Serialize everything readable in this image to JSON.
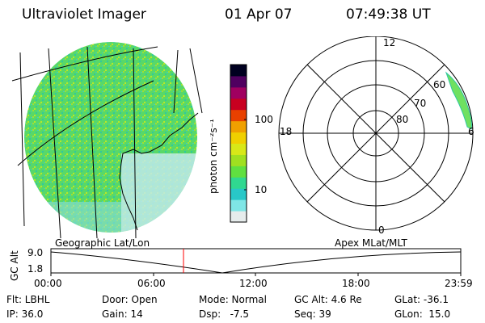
{
  "header": {
    "instrument": "Ultraviolet Imager",
    "date": "01 Apr 07",
    "time": "07:49:38 UT"
  },
  "colorbar": {
    "unit_label": "photon cm⁻²s⁻¹",
    "ticks": [
      "100",
      "10"
    ],
    "colors": [
      "#e6ecec",
      "#7fe6e6",
      "#28c8c8",
      "#30d890",
      "#60e040",
      "#a0e020",
      "#d8e818",
      "#f0d000",
      "#f0a000",
      "#e84000",
      "#c80020",
      "#a00060",
      "#500060",
      "#000020"
    ]
  },
  "polar_plot": {
    "labels": {
      "top": "12",
      "left": "18",
      "bottom": "0",
      "right": "6"
    },
    "lat_labels": [
      "60",
      "70",
      "80"
    ]
  },
  "map_labels": {
    "left": "Geographic Lat/Lon",
    "right": "Apex MLat/MLT"
  },
  "timeline": {
    "axis_label": "GC Alt",
    "y_ticks": [
      "9.0",
      "1.8"
    ],
    "x_ticks": [
      "00:00",
      "06:00",
      "12:00",
      "18:00",
      "23:59"
    ],
    "current_time_marker_color": "#ff0000"
  },
  "status": {
    "flt": "Flt: LBHL",
    "ip": "IP: 36.0",
    "door": "Door: Open",
    "gain": "Gain: 14",
    "mode": "Mode: Normal",
    "dsp": "Dsp:   -7.5",
    "gc_alt": "GC Alt: 4.6 Re",
    "seq": "Seq: 39",
    "glat": "GLat: -36.1",
    "glon": "GLon:  15.0"
  }
}
